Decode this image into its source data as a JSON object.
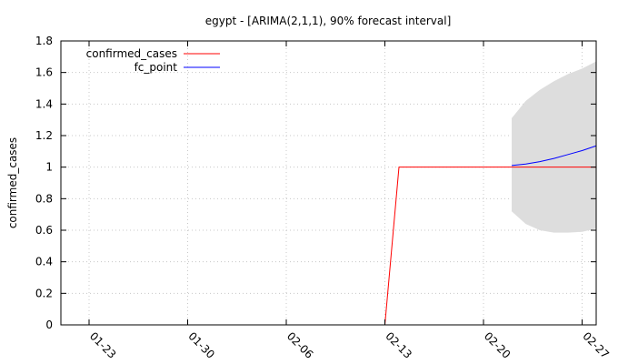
{
  "chart_data": {
    "type": "line",
    "title": "egypt -  [ARIMA(2,1,1), 90% forecast interval]",
    "xlabel": "",
    "ylabel": "confirmed_cases",
    "x_type": "date",
    "xlim": [
      "2020-01-21",
      "2020-02-28"
    ],
    "ylim": [
      0,
      1.8
    ],
    "y_ticks": [
      0,
      0.2,
      0.4,
      0.6,
      0.8,
      1,
      1.2,
      1.4,
      1.6,
      1.8
    ],
    "y_tick_labels": [
      "0",
      "0.2",
      "0.4",
      "0.6",
      "0.8",
      "1",
      "1.2",
      "1.4",
      "1.6",
      "1.8"
    ],
    "x_ticks": [
      "2020-01-23",
      "2020-01-30",
      "2020-02-06",
      "2020-02-13",
      "2020-02-20",
      "2020-02-27"
    ],
    "x_tick_labels": [
      "01-23",
      "01-30",
      "02-06",
      "02-13",
      "02-20",
      "02-27"
    ],
    "grid": true,
    "legend_position": "top-left",
    "series": [
      {
        "name": "confirmed_cases",
        "color": "#ff0000",
        "x": [
          "2020-01-21",
          "2020-02-13",
          "2020-02-14",
          "2020-02-28"
        ],
        "y": [
          0,
          0,
          1,
          1
        ]
      },
      {
        "name": "fc_point",
        "color": "#0000ff",
        "x": [
          "2020-02-22",
          "2020-02-23",
          "2020-02-24",
          "2020-02-25",
          "2020-02-26",
          "2020-02-27",
          "2020-02-28"
        ],
        "y": [
          1.01,
          1.02,
          1.035,
          1.055,
          1.08,
          1.105,
          1.135
        ]
      }
    ],
    "interval": {
      "color": "#dddddd",
      "x": [
        "2020-02-22",
        "2020-02-23",
        "2020-02-24",
        "2020-02-25",
        "2020-02-26",
        "2020-02-27",
        "2020-02-28"
      ],
      "lower": [
        0.72,
        0.64,
        0.6,
        0.585,
        0.585,
        0.59,
        0.61
      ],
      "upper": [
        1.31,
        1.42,
        1.49,
        1.545,
        1.59,
        1.625,
        1.67
      ]
    }
  }
}
